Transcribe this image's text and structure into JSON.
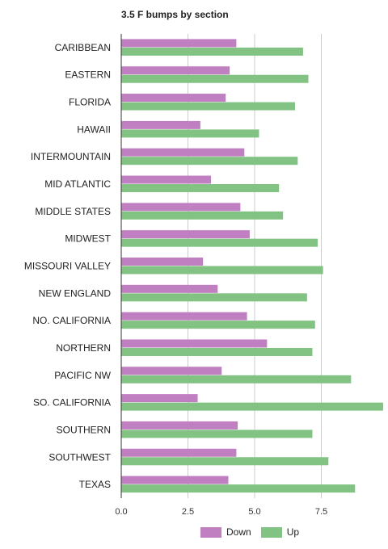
{
  "chart_data": {
    "type": "bar",
    "orientation": "horizontal",
    "title": "3.5 F bumps by section",
    "categories": [
      "CARIBBEAN",
      "EASTERN",
      "FLORIDA",
      "HAWAII",
      "INTERMOUNTAIN",
      "MID ATLANTIC",
      "MIDDLE STATES",
      "MIDWEST",
      "MISSOURI VALLEY",
      "NEW ENGLAND",
      "NO. CALIFORNIA",
      "NORTHERN",
      "PACIFIC NW",
      "SO. CALIFORNIA",
      "SOUTHERN",
      "SOUTHWEST",
      "TEXAS"
    ],
    "series": [
      {
        "name": "Down",
        "color": "#c07fc0",
        "values": [
          4.3,
          4.05,
          3.9,
          2.95,
          4.6,
          3.35,
          4.45,
          4.8,
          3.05,
          3.6,
          4.7,
          5.45,
          3.75,
          2.85,
          4.35,
          4.3,
          4.0
        ]
      },
      {
        "name": "Up",
        "color": "#82c282",
        "values": [
          6.8,
          7.0,
          6.5,
          5.15,
          6.6,
          5.9,
          6.05,
          7.35,
          7.55,
          6.95,
          7.25,
          7.15,
          8.6,
          9.8,
          7.15,
          7.75,
          8.75
        ]
      }
    ],
    "xlim": [
      0,
      10
    ],
    "xticks": [
      "0.0",
      "2.5",
      "5.0",
      "7.5"
    ],
    "xtick_values": [
      0,
      2.5,
      5,
      7.5
    ],
    "grid": true,
    "legend_position": "bottom"
  }
}
